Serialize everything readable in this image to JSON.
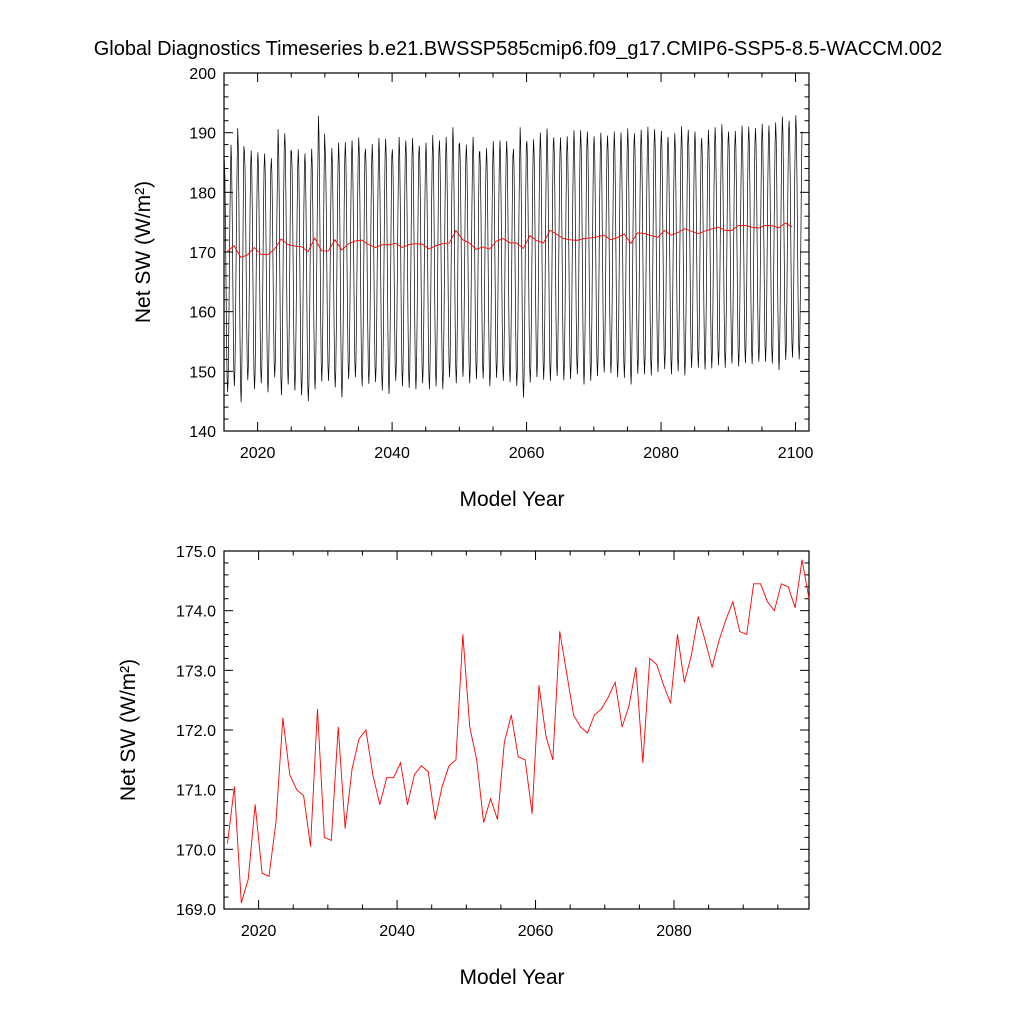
{
  "title": "Global Diagnostics Timeseries b.e21.BWSSP585cmip6.f09_g17.CMIP6-SSP5-8.5-WACCM.002",
  "colors": {
    "monthly": "#000000",
    "annual": "#ff0000",
    "axis": "#000000"
  },
  "chart_data": [
    {
      "type": "line",
      "name": "top-panel",
      "xlabel": "Model Year",
      "ylabel": "Net SW (W/m²)",
      "xlim": [
        2015,
        2102
      ],
      "ylim": [
        140,
        200
      ],
      "xticks": [
        "2020",
        "2040",
        "2060",
        "2080",
        "2100"
      ],
      "yticks": [
        "140",
        "150",
        "160",
        "170",
        "180",
        "190",
        "200"
      ],
      "monthly_series": {
        "name": "monthly mean",
        "start_year": 2015,
        "months": 1032,
        "annual_peaks": [
          185.5,
          188.0,
          190.8,
          186.8,
          187.0,
          186.7,
          186.5,
          185.7,
          190.6,
          189.9,
          186.8,
          187.2,
          186.5,
          187.3,
          192.8,
          187.3,
          187.4,
          188.3,
          188.4,
          188.7,
          189.2,
          187.3,
          188.1,
          189.1,
          189.0,
          187.2,
          189.3,
          188.7,
          189.1,
          187.8,
          188.3,
          189.6,
          188.7,
          189.3,
          190.9,
          188.2,
          188.0,
          189.3,
          186.9,
          187.4,
          188.6,
          188.7,
          188.6,
          187.3,
          190.9,
          188.6,
          188.9,
          190.0,
          190.7,
          189.2,
          189.2,
          189.4,
          190.4,
          190.4,
          190.2,
          189.4,
          190.0,
          189.5,
          190.2,
          190.0,
          190.7,
          189.9,
          190.5,
          191.0,
          190.6,
          190.3,
          189.3,
          189.9,
          191.1,
          190.5,
          190.2,
          189.1,
          190.5,
          190.9,
          191.4,
          190.2,
          190.3,
          191.2,
          191.0,
          190.8,
          191.5,
          191.2,
          191.7,
          192.7,
          192.0,
          192.9
        ],
        "annual_troughs": [
          146.5,
          147.5,
          144.8,
          148.5,
          147.0,
          148.0,
          146.5,
          149.0,
          146.0,
          147.8,
          146.8,
          146.0,
          145.0,
          147.0,
          148.3,
          148.4,
          147.3,
          145.6,
          148.7,
          149.0,
          147.5,
          147.9,
          148.2,
          146.8,
          146.2,
          148.4,
          147.5,
          147.2,
          147.0,
          148.0,
          147.0,
          147.5,
          147.0,
          149.0,
          148.0,
          149.1,
          148.0,
          148.7,
          148.8,
          147.5,
          148.9,
          148.4,
          148.2,
          147.5,
          145.6,
          148.1,
          149.0,
          148.6,
          148.4,
          149.2,
          148.5,
          148.7,
          149.5,
          147.8,
          148.4,
          149.2,
          149.8,
          149.7,
          149.0,
          148.9,
          147.8,
          149.6,
          149.5,
          149.3,
          149.9,
          150.4,
          149.5,
          150.0,
          149.3,
          150.6,
          150.6,
          150.3,
          150.5,
          151.0,
          150.6,
          151.3,
          150.8,
          151.4,
          151.2,
          151.6,
          151.6,
          151.3,
          150.2,
          151.9,
          152.3,
          152.0
        ]
      },
      "annual_series": {
        "name": "annual mean",
        "ref": "bottom-panel.values"
      }
    },
    {
      "type": "line",
      "name": "bottom-panel",
      "xlabel": "Model Year",
      "ylabel": "Net SW (W/m²)",
      "xlim": [
        2015,
        2099.5
      ],
      "ylim": [
        169,
        175
      ],
      "xticks": [
        "2020",
        "2040",
        "2060",
        "2080"
      ],
      "yticks": [
        "169.0",
        "170.0",
        "171.0",
        "172.0",
        "173.0",
        "174.0",
        "175.0"
      ],
      "x": [
        2015.5,
        2016.5,
        2017.5,
        2018.5,
        2019.5,
        2020.5,
        2021.5,
        2022.5,
        2023.5,
        2024.5,
        2025.5,
        2026.5,
        2027.5,
        2028.5,
        2029.5,
        2030.5,
        2031.5,
        2032.5,
        2033.5,
        2034.5,
        2035.5,
        2036.5,
        2037.5,
        2038.5,
        2039.5,
        2040.5,
        2041.5,
        2042.5,
        2043.5,
        2044.5,
        2045.5,
        2046.5,
        2047.5,
        2048.5,
        2049.5,
        2050.5,
        2051.5,
        2052.5,
        2053.5,
        2054.5,
        2055.5,
        2056.5,
        2057.5,
        2058.5,
        2059.5,
        2060.5,
        2061.5,
        2062.5,
        2063.5,
        2064.5,
        2065.5,
        2066.5,
        2067.5,
        2068.5,
        2069.5,
        2070.5,
        2071.5,
        2072.5,
        2073.5,
        2074.5,
        2075.5,
        2076.5,
        2077.5,
        2078.5,
        2079.5,
        2080.5,
        2081.5,
        2082.5,
        2083.5,
        2084.5,
        2085.5,
        2086.5,
        2087.5,
        2088.5,
        2089.5,
        2090.5,
        2091.5,
        2092.5,
        2093.5,
        2094.5,
        2095.5,
        2096.5,
        2097.5,
        2098.5,
        2099.5
      ],
      "values": [
        170.1,
        171.05,
        169.1,
        169.5,
        170.75,
        169.6,
        169.55,
        170.45,
        172.2,
        171.25,
        171.0,
        170.9,
        170.05,
        172.35,
        170.2,
        170.15,
        172.05,
        170.35,
        171.35,
        171.85,
        172.0,
        171.25,
        170.75,
        171.2,
        171.2,
        171.45,
        170.75,
        171.25,
        171.4,
        171.3,
        170.5,
        171.05,
        171.4,
        171.5,
        173.6,
        172.05,
        171.5,
        170.45,
        170.85,
        170.5,
        171.8,
        172.25,
        171.55,
        171.5,
        170.6,
        172.75,
        171.9,
        171.5,
        173.65,
        172.95,
        172.25,
        172.05,
        171.95,
        172.25,
        172.35,
        172.55,
        172.8,
        172.05,
        172.4,
        173.05,
        171.45,
        173.2,
        173.1,
        172.75,
        172.45,
        173.6,
        172.8,
        173.25,
        173.9,
        173.5,
        173.05,
        173.5,
        173.85,
        174.15,
        173.65,
        173.6,
        174.45,
        174.45,
        174.15,
        174.0,
        174.45,
        174.4,
        174.05,
        174.85,
        174.2
      ]
    }
  ]
}
